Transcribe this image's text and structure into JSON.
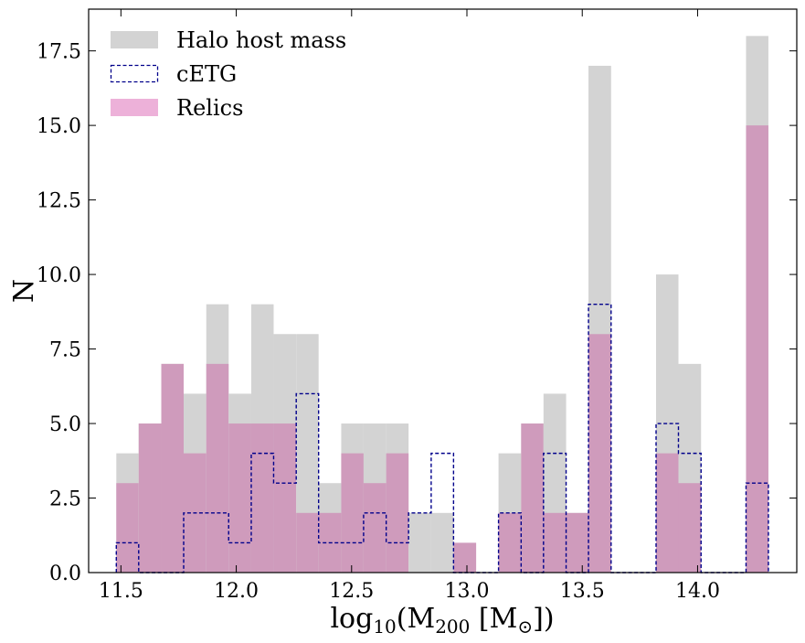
{
  "chart_data": {
    "type": "histogram",
    "bin_edges": [
      11.48,
      11.577,
      11.675,
      11.772,
      11.87,
      11.967,
      12.065,
      12.162,
      12.26,
      12.357,
      12.455,
      12.552,
      12.65,
      12.747,
      12.845,
      12.942,
      13.04,
      13.137,
      13.235,
      13.332,
      13.43,
      13.527,
      13.625,
      13.722,
      13.82,
      13.917,
      14.015,
      14.112,
      14.21,
      14.307
    ],
    "series": [
      {
        "name": "Halo host mass",
        "style": "filled",
        "color": "#d3d3d3",
        "values": [
          4,
          5,
          7,
          6,
          9,
          6,
          9,
          8,
          8,
          3,
          5,
          5,
          5,
          2,
          2,
          0,
          0,
          4,
          5,
          6,
          2,
          17,
          0,
          0,
          10,
          7,
          0,
          0,
          18
        ]
      },
      {
        "name": "cETG",
        "style": "step-dashed",
        "color": "#00008b",
        "values": [
          1,
          0,
          0,
          2,
          2,
          1,
          4,
          3,
          6,
          1,
          1,
          2,
          1,
          2,
          4,
          0,
          0,
          2,
          0,
          4,
          0,
          9,
          0,
          0,
          5,
          4,
          0,
          0,
          3
        ]
      },
      {
        "name": "Relics",
        "style": "filled",
        "color": "#e8a1cf",
        "values": [
          3,
          5,
          7,
          4,
          7,
          5,
          5,
          5,
          2,
          2,
          4,
          3,
          4,
          0,
          0,
          1,
          0,
          2,
          5,
          2,
          2,
          8,
          0,
          0,
          4,
          3,
          0,
          0,
          15
        ]
      }
    ],
    "overlap_color": "#cf9bbc",
    "xlabel_base": "log",
    "xlabel_sub": "10",
    "xlabel_mid": "M",
    "xlabel_sub2": "200",
    "xlabel_unit": "M",
    "xlabel_unit_symbol": "⊙",
    "ylabel": "N",
    "xlim": [
      11.36,
      14.43
    ],
    "ylim": [
      0,
      18.9
    ],
    "xticks": [
      11.5,
      12.0,
      12.5,
      13.0,
      13.5,
      14.0
    ],
    "xtick_labels": [
      "11.5",
      "12.0",
      "12.5",
      "13.0",
      "13.5",
      "14.0"
    ],
    "yticks": [
      0,
      2.5,
      5,
      7.5,
      10,
      12.5,
      15,
      17.5
    ],
    "ytick_labels": [
      "0.0",
      "2.5",
      "5.0",
      "7.5",
      "10.0",
      "12.5",
      "15.0",
      "17.5"
    ],
    "legend_position": "top-left"
  }
}
